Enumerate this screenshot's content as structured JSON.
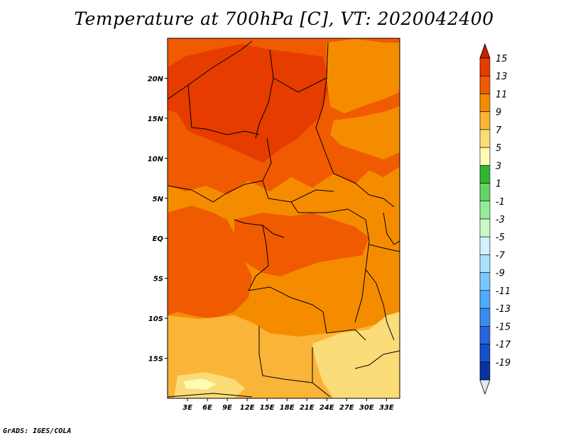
{
  "title": "Temperature at 700hPa [C], VT: 2020042400",
  "footer": "GrADS: IGES/COLA",
  "map": {
    "lon_labels": [
      "3E",
      "6E",
      "9E",
      "12E",
      "15E",
      "18E",
      "21E",
      "24E",
      "27E",
      "30E",
      "33E"
    ],
    "lon_values": [
      3,
      6,
      9,
      12,
      15,
      18,
      21,
      24,
      27,
      30,
      33
    ],
    "lon_range": [
      0,
      35
    ],
    "lat_labels": [
      "20N",
      "15N",
      "10N",
      "5N",
      "EQ",
      "5S",
      "10S",
      "15S"
    ],
    "lat_values": [
      20,
      15,
      10,
      5,
      0,
      -5,
      -10,
      -15
    ],
    "lat_range": [
      -20,
      25
    ]
  },
  "colorbar": {
    "labels": [
      "15",
      "13",
      "11",
      "9",
      "7",
      "5",
      "3",
      "1",
      "-1",
      "-3",
      "-5",
      "-7",
      "-9",
      "-11",
      "-13",
      "-15",
      "-17",
      "-19"
    ],
    "colors": [
      "#c81e00",
      "#e63c00",
      "#f05a00",
      "#f58c00",
      "#fab437",
      "#fadc78",
      "#fffab4",
      "#32b432",
      "#64d264",
      "#96ec96",
      "#c8fac8",
      "#d2f0ff",
      "#aae1ff",
      "#78c8ff",
      "#50aaff",
      "#3c8cf0",
      "#2864dc",
      "#1450c8",
      "#0a32a0",
      "#0a0a5a"
    ]
  }
}
